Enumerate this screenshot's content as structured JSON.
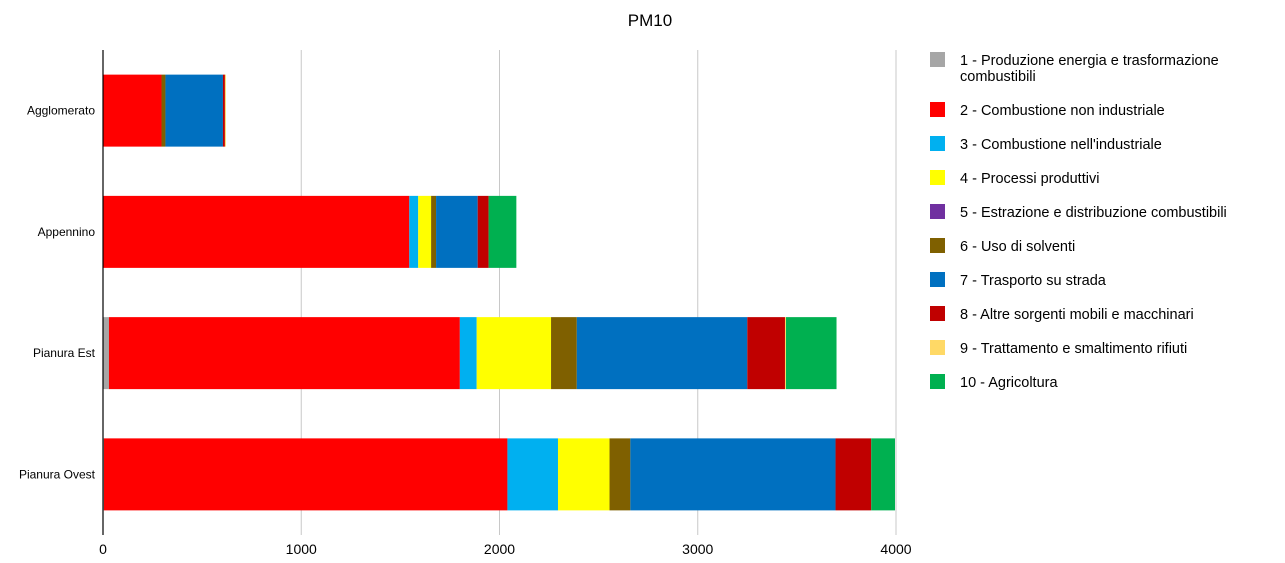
{
  "chart_data": {
    "type": "bar",
    "orientation": "horizontal",
    "stacked": true,
    "title": "PM10",
    "xlabel": "",
    "ylabel": "",
    "xlim": [
      0,
      4000
    ],
    "x_ticks": [
      "0",
      "1000",
      "2000",
      "3000",
      "4000"
    ],
    "grid": "vertical",
    "legend_position": "right",
    "categories": [
      "Agglomerato",
      "Appennino",
      "Pianura Est",
      "Pianura Ovest"
    ],
    "series": [
      {
        "name": "1 - Produzione energia e trasformazione combustibili",
        "color": "#a6a6a6",
        "values": [
          0,
          0,
          30,
          5
        ]
      },
      {
        "name": "2 - Combustione non industriale",
        "color": "#ff0000",
        "values": [
          295,
          1545,
          1770,
          2035
        ]
      },
      {
        "name": "3 - Combustione nell'industriale",
        "color": "#00b0f0",
        "values": [
          0,
          45,
          85,
          255
        ]
      },
      {
        "name": "4 - Processi produttivi",
        "color": "#ffff00",
        "values": [
          0,
          65,
          375,
          260
        ]
      },
      {
        "name": "5 - Estrazione e distribuzione combustibili",
        "color": "#7030a0",
        "values": [
          0,
          0,
          0,
          0
        ]
      },
      {
        "name": "6 - Uso di solventi",
        "color": "#7f6000",
        "values": [
          20,
          25,
          130,
          105
        ]
      },
      {
        "name": "7 - Trasporto su strada",
        "color": "#0070c0",
        "values": [
          290,
          210,
          860,
          1035
        ]
      },
      {
        "name": "8 - Altre sorgenti mobili e macchinari",
        "color": "#c00000",
        "values": [
          10,
          55,
          190,
          180
        ]
      },
      {
        "name": "9 - Trattamento e smaltimento rifiuti",
        "color": "#ffd966",
        "values": [
          5,
          0,
          5,
          0
        ]
      },
      {
        "name": "10 - Agricoltura",
        "color": "#00b050",
        "values": [
          0,
          140,
          255,
          120
        ]
      }
    ]
  }
}
